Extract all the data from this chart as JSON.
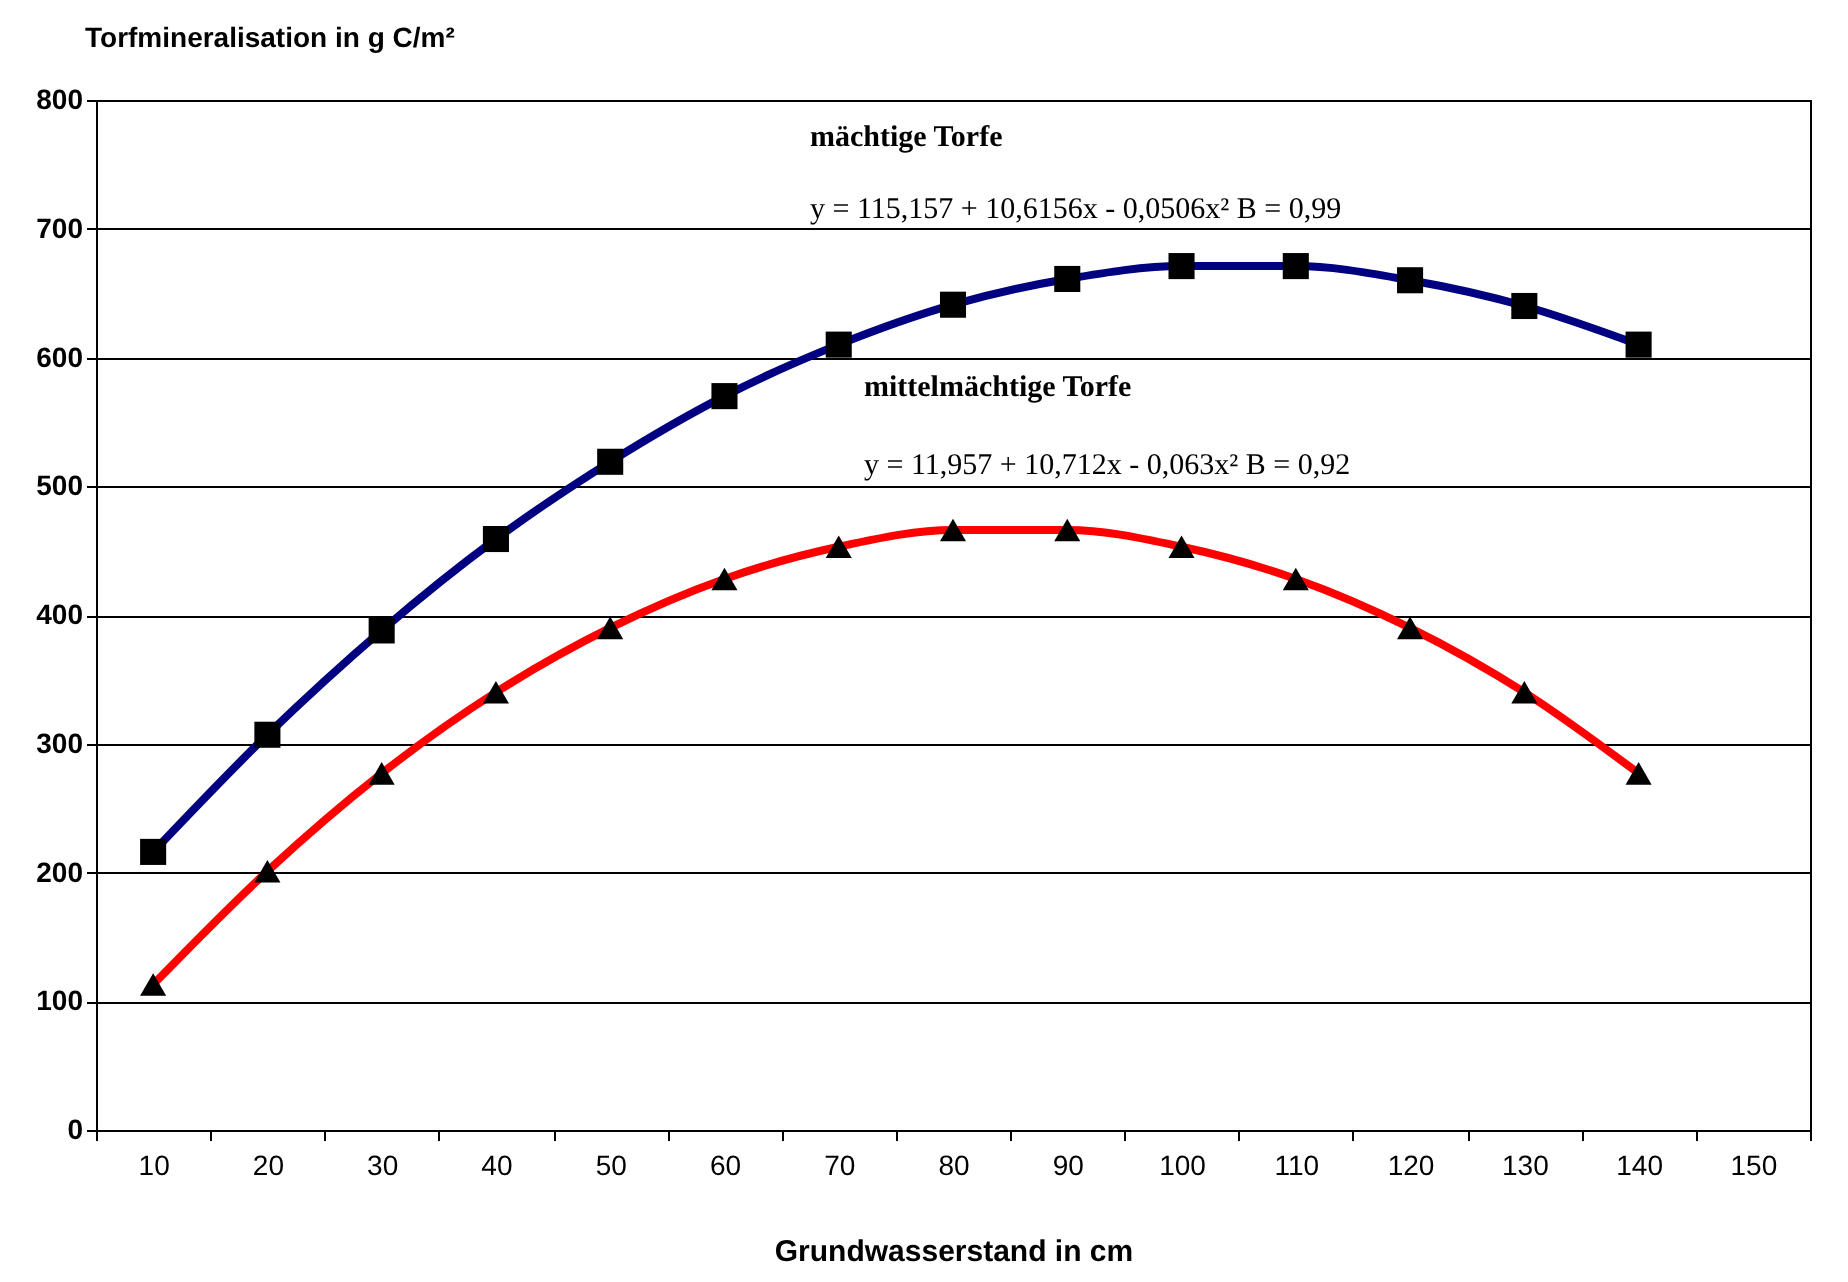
{
  "chart_data": {
    "type": "line",
    "xlabel": "Grundwasserstand in cm",
    "ylabel": "Torfmineralisation in g C/m²",
    "categories": [
      "10",
      "20",
      "30",
      "40",
      "50",
      "60",
      "70",
      "80",
      "90",
      "100",
      "110",
      "120",
      "130",
      "140",
      "150"
    ],
    "series": [
      {
        "color": "#000080",
        "marker": "square",
        "values": [
          216,
          307,
          388,
          459,
          519,
          570,
          610,
          641,
          661,
          671,
          671,
          660,
          640,
          610,
          null
        ]
      },
      {
        "color": "#ff0000",
        "marker": "triangle",
        "values": [
          113,
          201,
          277,
          340,
          390,
          428,
          453,
          466,
          466,
          453,
          428,
          390,
          340,
          277,
          null
        ]
      }
    ],
    "ylim": [
      0,
      800
    ],
    "yticks": [
      0,
      100,
      200,
      300,
      400,
      500,
      600,
      700,
      800
    ],
    "grid": "y",
    "annotations": [
      "mächtige Torfe",
      "y = 115,157 + 10,6156x      - 0,0506x²  B = 0,99",
      "mittelmächtige Torfe",
      "y = 11,957 + 10,712x      - 0,063x²  B = 0,92"
    ]
  }
}
